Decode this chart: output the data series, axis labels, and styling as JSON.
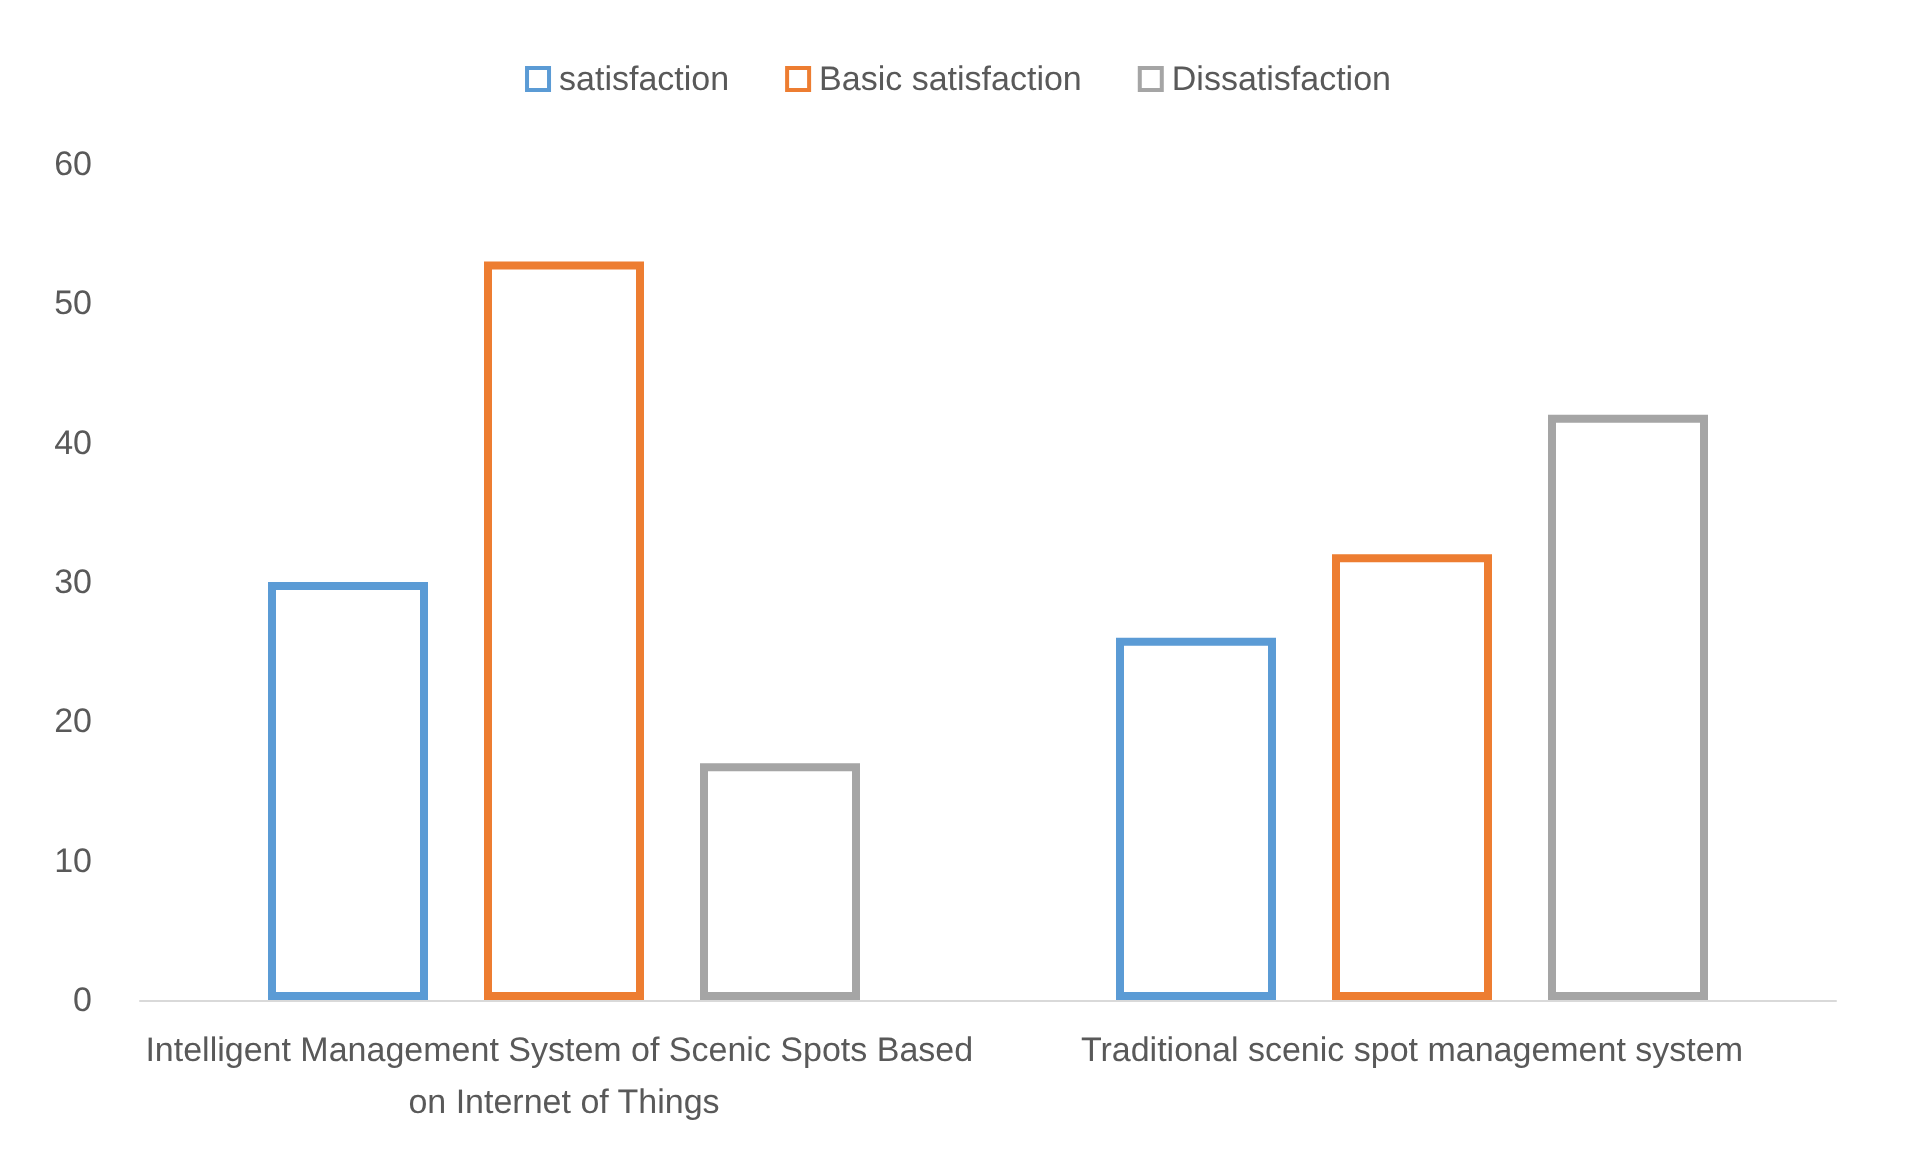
{
  "chart_data": {
    "type": "bar",
    "categories": [
      "Intelligent Management System of Scenic Spots Based on Internet of Things",
      "Traditional scenic spot management system"
    ],
    "series": [
      {
        "name": "satisfaction",
        "color": "#5b9bd5",
        "values": [
          30,
          26
        ]
      },
      {
        "name": "Basic satisfaction",
        "color": "#ed7d31",
        "values": [
          53,
          32
        ]
      },
      {
        "name": "Dissatisfaction",
        "color": "#a5a5a5",
        "values": [
          17,
          42
        ]
      }
    ],
    "ylim": [
      0,
      60
    ],
    "yticks": [
      0,
      10,
      20,
      30,
      40,
      50,
      60
    ],
    "grid": false,
    "legend": "top"
  }
}
